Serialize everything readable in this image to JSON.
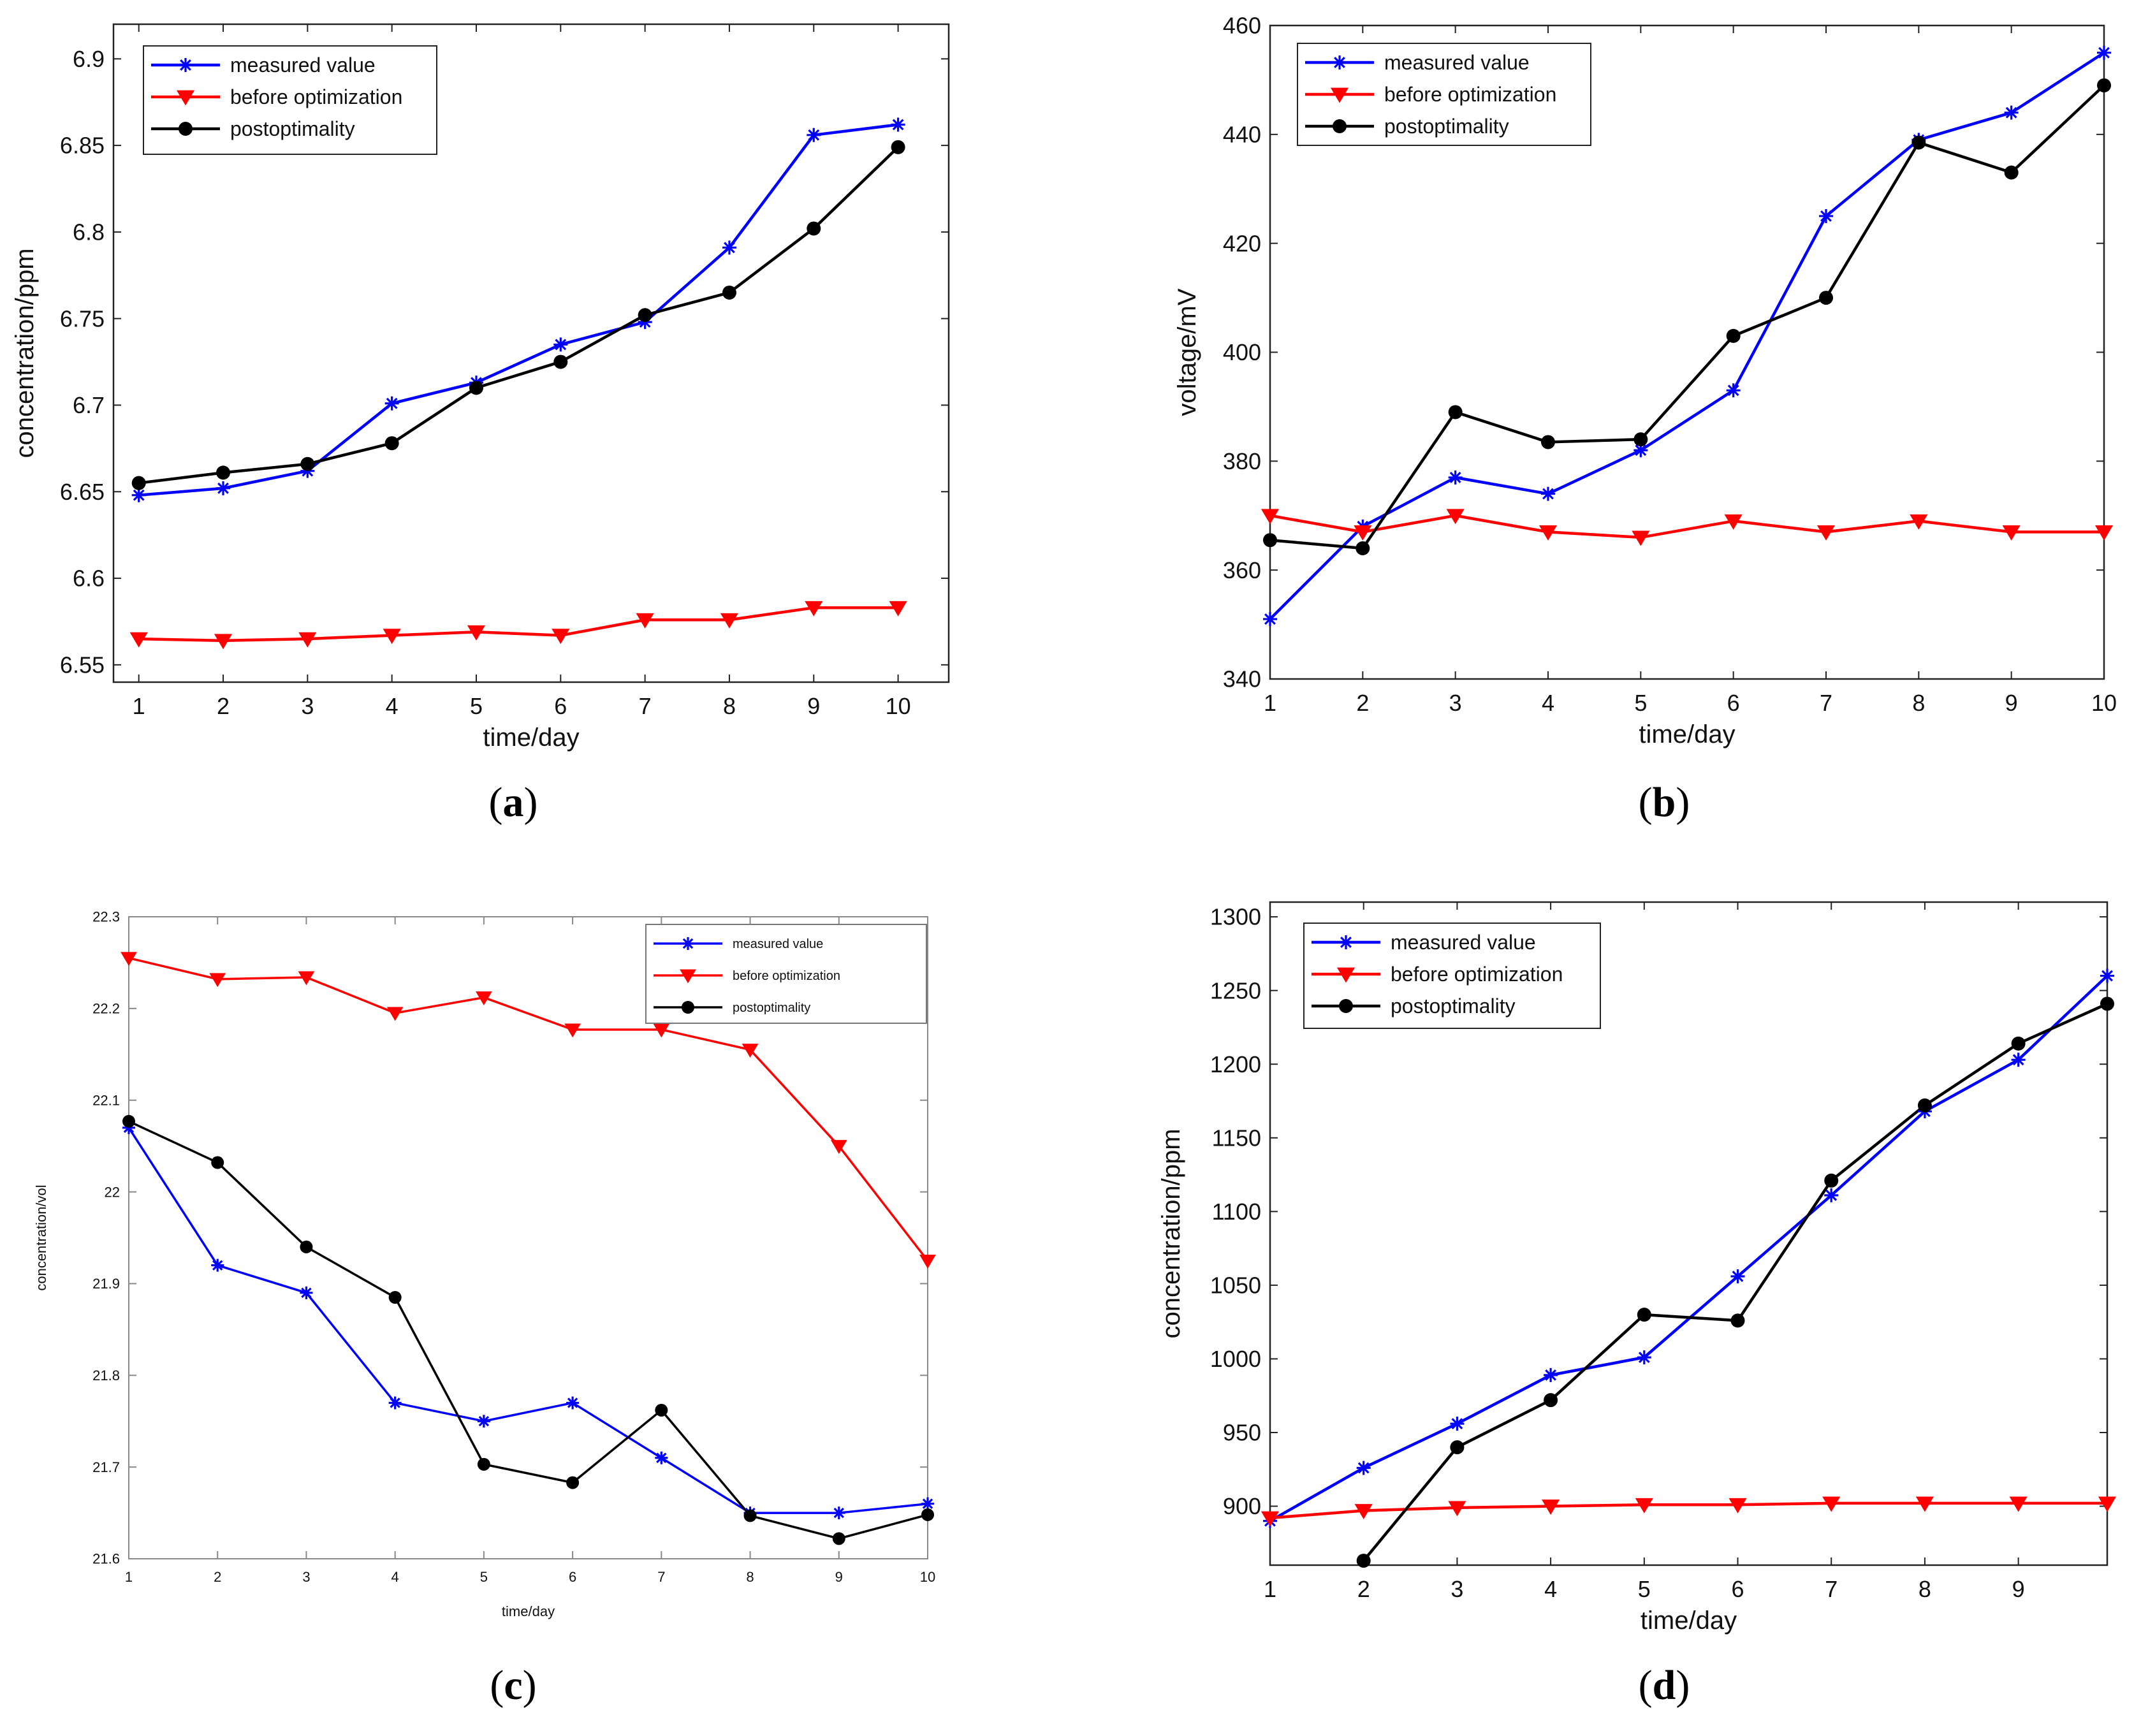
{
  "chart_data": [
    {
      "type": "line",
      "caption_letter": "a",
      "xlabel": "time/day",
      "ylabel": "concentration/ppm",
      "xlim": [
        0.7,
        10.6
      ],
      "ylim": [
        6.54,
        6.92
      ],
      "xticks": [
        1,
        2,
        3,
        4,
        5,
        6,
        7,
        8,
        9,
        10
      ],
      "yticks": [
        6.55,
        6.6,
        6.65,
        6.7,
        6.75,
        6.8,
        6.85,
        6.9
      ],
      "legend_position": "top-left",
      "series": [
        {
          "name": "measured value",
          "color": "#0000ff",
          "marker": "asterisk",
          "x": [
            1,
            2,
            3,
            4,
            5,
            6,
            7,
            8,
            9,
            10
          ],
          "y": [
            6.648,
            6.652,
            6.662,
            6.701,
            6.713,
            6.735,
            6.748,
            6.791,
            6.856,
            6.862
          ]
        },
        {
          "name": "before optimization",
          "color": "#ff0000",
          "marker": "triangle-down",
          "x": [
            1,
            2,
            3,
            4,
            5,
            6,
            7,
            8,
            9,
            10
          ],
          "y": [
            6.565,
            6.564,
            6.565,
            6.567,
            6.569,
            6.567,
            6.576,
            6.576,
            6.583,
            6.583
          ]
        },
        {
          "name": "postoptimality",
          "color": "#000000",
          "marker": "circle",
          "x": [
            1,
            2,
            3,
            4,
            5,
            6,
            7,
            8,
            9,
            10
          ],
          "y": [
            6.655,
            6.661,
            6.666,
            6.678,
            6.71,
            6.725,
            6.752,
            6.765,
            6.802,
            6.849
          ]
        }
      ]
    },
    {
      "type": "line",
      "caption_letter": "b",
      "xlabel": "time/day",
      "ylabel": "voltage/mV",
      "xlim": [
        1,
        10
      ],
      "ylim": [
        340,
        460
      ],
      "xticks": [
        1,
        2,
        3,
        4,
        5,
        6,
        7,
        8,
        9,
        10
      ],
      "yticks": [
        340,
        360,
        380,
        400,
        420,
        440,
        460
      ],
      "legend_position": "top-left",
      "series": [
        {
          "name": "measured value",
          "color": "#0000ff",
          "marker": "asterisk",
          "x": [
            1,
            2,
            3,
            4,
            5,
            6,
            7,
            8,
            9,
            10
          ],
          "y": [
            351,
            368,
            377,
            374,
            382,
            393,
            425,
            439,
            444,
            455
          ]
        },
        {
          "name": "before optimization",
          "color": "#ff0000",
          "marker": "triangle-down",
          "x": [
            1,
            2,
            3,
            4,
            5,
            6,
            7,
            8,
            9,
            10
          ],
          "y": [
            370,
            367,
            370,
            367,
            366,
            369,
            367,
            369,
            367,
            367
          ]
        },
        {
          "name": "postoptimality",
          "color": "#000000",
          "marker": "circle",
          "x": [
            1,
            2,
            3,
            4,
            5,
            6,
            7,
            8,
            9,
            10
          ],
          "y": [
            365.5,
            364,
            389,
            383.5,
            384,
            403,
            410,
            438.5,
            433,
            449
          ]
        }
      ]
    },
    {
      "type": "line",
      "caption_letter": "c",
      "xlabel": "time/day",
      "ylabel": "concentration/vol",
      "xlim": [
        1,
        10
      ],
      "ylim": [
        21.6,
        22.3
      ],
      "xticks": [
        1,
        2,
        3,
        4,
        5,
        6,
        7,
        8,
        9,
        10
      ],
      "yticks": [
        21.6,
        21.7,
        21.8,
        21.9,
        22,
        22.1,
        22.2,
        22.3
      ],
      "legend_position": "top-right",
      "series": [
        {
          "name": "measured value",
          "color": "#0000ff",
          "marker": "asterisk",
          "x": [
            1,
            2,
            3,
            4,
            5,
            6,
            7,
            8,
            9,
            10
          ],
          "y": [
            22.07,
            21.92,
            21.89,
            21.77,
            21.75,
            21.77,
            21.71,
            21.65,
            21.65,
            21.66
          ]
        },
        {
          "name": "before optimization",
          "color": "#ff0000",
          "marker": "triangle-down",
          "x": [
            1,
            2,
            3,
            4,
            5,
            6,
            7,
            8,
            9,
            10
          ],
          "y": [
            22.255,
            22.232,
            22.234,
            22.195,
            22.212,
            22.177,
            22.177,
            22.155,
            22.05,
            21.925
          ]
        },
        {
          "name": "postoptimality",
          "color": "#000000",
          "marker": "circle",
          "x": [
            1,
            2,
            3,
            4,
            5,
            6,
            7,
            8,
            9,
            10
          ],
          "y": [
            22.077,
            22.032,
            21.94,
            21.885,
            21.703,
            21.683,
            21.762,
            21.647,
            21.622,
            21.648
          ]
        }
      ]
    },
    {
      "type": "line",
      "caption_letter": "d",
      "xlabel": "time/day",
      "ylabel": "concentration/ppm",
      "xlim": [
        1,
        9.95
      ],
      "ylim": [
        860,
        1310
      ],
      "xticks": [
        1,
        2,
        3,
        4,
        5,
        6,
        7,
        8,
        9
      ],
      "yticks": [
        900,
        950,
        1000,
        1050,
        1100,
        1150,
        1200,
        1250,
        1300
      ],
      "legend_position": "top-left",
      "series": [
        {
          "name": "measured value",
          "color": "#0000ff",
          "marker": "asterisk",
          "x": [
            1,
            2,
            3,
            4,
            5,
            6,
            7,
            8,
            9,
            9.95
          ],
          "y": [
            890,
            926,
            956,
            989,
            1001,
            1056,
            1111,
            1168,
            1203,
            1260
          ]
        },
        {
          "name": "before optimization",
          "color": "#ff0000",
          "marker": "triangle-down",
          "x": [
            1,
            2,
            3,
            4,
            5,
            6,
            7,
            8,
            9,
            9.95
          ],
          "y": [
            892,
            897,
            899,
            900,
            901,
            901,
            902,
            902,
            902,
            902
          ]
        },
        {
          "name": "postoptimality",
          "color": "#000000",
          "marker": "circle",
          "x": [
            2,
            3,
            4,
            5,
            6,
            7,
            8,
            9,
            9.95
          ],
          "y": [
            863,
            940,
            972,
            1030,
            1026,
            1121,
            1172,
            1214,
            1241
          ]
        }
      ]
    }
  ]
}
